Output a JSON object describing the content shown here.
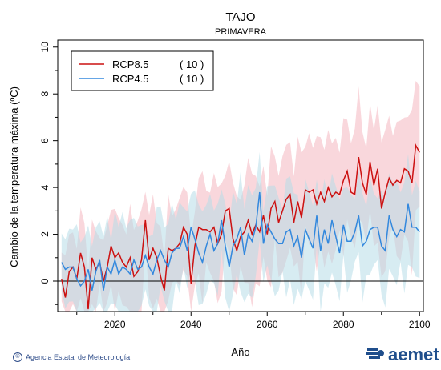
{
  "chart_data": {
    "type": "line",
    "title": "TAJO",
    "subtitle": "PRIMAVERA",
    "xlabel": "Año",
    "ylabel": "Cambio de la temperatura máxima (ºC)",
    "xlim": [
      2005,
      2101
    ],
    "ylim": [
      -1.3,
      10.3
    ],
    "xticks": [
      2020,
      2040,
      2060,
      2080,
      2100
    ],
    "yticks": [
      0,
      2,
      4,
      6,
      8,
      10
    ],
    "reference_line": 0,
    "legend_position": "top-left",
    "x": [
      2006,
      2007,
      2008,
      2009,
      2010,
      2011,
      2012,
      2013,
      2014,
      2015,
      2016,
      2017,
      2018,
      2019,
      2020,
      2021,
      2022,
      2023,
      2024,
      2025,
      2026,
      2027,
      2028,
      2029,
      2030,
      2031,
      2032,
      2033,
      2034,
      2035,
      2036,
      2037,
      2038,
      2039,
      2040,
      2041,
      2042,
      2043,
      2044,
      2045,
      2046,
      2047,
      2048,
      2049,
      2050,
      2051,
      2052,
      2053,
      2054,
      2055,
      2056,
      2057,
      2058,
      2059,
      2060,
      2061,
      2062,
      2063,
      2064,
      2065,
      2066,
      2067,
      2068,
      2069,
      2070,
      2071,
      2072,
      2073,
      2074,
      2075,
      2076,
      2077,
      2078,
      2079,
      2080,
      2081,
      2082,
      2083,
      2084,
      2085,
      2086,
      2087,
      2088,
      2089,
      2090,
      2091,
      2092,
      2093,
      2094,
      2095,
      2096,
      2097,
      2098,
      2099,
      2100
    ],
    "series": [
      {
        "name": "RCP8.5",
        "count": "( 10 )",
        "color": "#cc1111",
        "band_color": "#f4b6c0",
        "values": [
          0.1,
          -0.7,
          0.4,
          0.6,
          0.1,
          1.2,
          0.6,
          -1.2,
          1.0,
          0.5,
          0.8,
          0.0,
          0.6,
          1.5,
          1.0,
          1.2,
          0.8,
          0.6,
          1.0,
          0.2,
          0.4,
          0.9,
          2.6,
          0.9,
          1.4,
          1.0,
          0.2,
          -0.4,
          1.4,
          1.3,
          1.4,
          1.6,
          2.3,
          2.0,
          -0.1,
          1.5,
          2.3,
          2.2,
          2.2,
          2.1,
          2.3,
          1.6,
          2.0,
          3.0,
          3.1,
          1.8,
          1.3,
          1.9,
          2.1,
          2.6,
          2.0,
          2.4,
          2.1,
          2.8,
          2.0,
          3.1,
          3.4,
          2.5,
          3.0,
          3.5,
          3.7,
          2.5,
          3.4,
          2.7,
          3.9,
          3.8,
          3.9,
          3.3,
          3.8,
          3.4,
          4.0,
          3.6,
          3.8,
          3.7,
          4.3,
          4.7,
          3.8,
          3.7,
          5.3,
          4.2,
          3.7,
          5.1,
          4.1,
          4.8,
          3.1,
          3.8,
          4.4,
          4.1,
          4.3,
          4.2,
          4.8,
          4.7,
          4.2,
          5.8,
          5.5
        ]
      },
      {
        "name": "RCP4.5",
        "count": "( 10 )",
        "color": "#3388dd",
        "band_color": "#b6dde8",
        "values": [
          0.8,
          0.5,
          0.6,
          0.6,
          0.1,
          -0.2,
          0.0,
          0.5,
          -0.4,
          0.4,
          0.9,
          -0.4,
          0.6,
          0.3,
          0.9,
          0.3,
          0.6,
          0.5,
          0.3,
          0.9,
          0.5,
          0.6,
          1.1,
          0.6,
          0.3,
          0.9,
          1.3,
          0.9,
          0.6,
          1.2,
          1.4,
          1.4,
          1.9,
          1.3,
          2.3,
          1.8,
          1.2,
          0.8,
          1.5,
          2.0,
          1.3,
          1.6,
          2.6,
          1.5,
          0.6,
          1.5,
          1.8,
          2.3,
          1.1,
          2.0,
          1.7,
          2.3,
          3.8,
          1.6,
          2.4,
          2.1,
          1.8,
          1.6,
          1.6,
          2.1,
          2.2,
          1.5,
          1.9,
          1.0,
          2.2,
          1.8,
          1.4,
          2.8,
          1.3,
          2.2,
          1.6,
          2.6,
          1.9,
          1.2,
          2.4,
          1.7,
          1.7,
          2.1,
          2.8,
          1.5,
          1.7,
          2.2,
          2.3,
          2.3,
          1.5,
          1.3,
          2.8,
          2.2,
          1.9,
          2.2,
          2.1,
          3.3,
          2.3,
          2.3,
          2.1
        ]
      }
    ]
  },
  "footer": {
    "copyright_symbol": "©",
    "agency": "Agencia Estatal de Meteorología",
    "logo_text": "aemet"
  }
}
